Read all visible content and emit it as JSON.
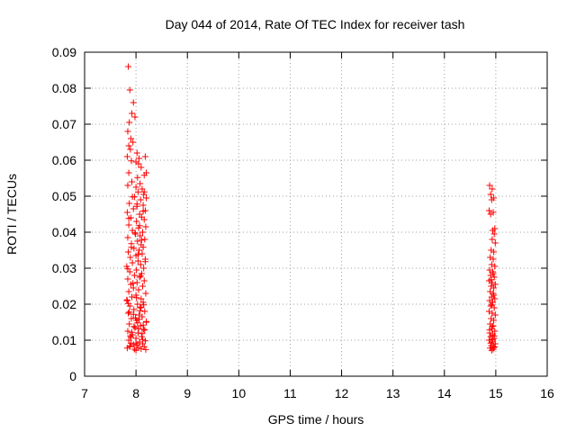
{
  "chart_data": {
    "type": "scatter",
    "title": "Day 044 of 2014, Rate Of TEC Index for receiver tash",
    "xlabel": "GPS time / hours",
    "ylabel": "ROTI / TECUs",
    "xlim": [
      7,
      16
    ],
    "ylim": [
      0,
      0.09
    ],
    "xticks": [
      7,
      8,
      9,
      10,
      11,
      12,
      13,
      14,
      15,
      16
    ],
    "yticks": [
      0,
      0.01,
      0.02,
      0.03,
      0.04,
      0.05,
      0.06,
      0.07,
      0.08,
      0.09
    ],
    "ytick_labels": [
      "0",
      "0.01",
      "0.02",
      "0.03",
      "0.04",
      "0.05",
      "0.06",
      "0.07",
      "0.08",
      "0.09"
    ],
    "grid": true,
    "marker": "plus",
    "series": [
      {
        "color": "#ff0000",
        "points": [
          [
            7.85,
            0.086
          ],
          [
            7.88,
            0.0795
          ],
          [
            7.95,
            0.076
          ],
          [
            7.92,
            0.073
          ],
          [
            7.98,
            0.072
          ],
          [
            7.87,
            0.0705
          ],
          [
            7.84,
            0.068
          ],
          [
            7.9,
            0.066
          ],
          [
            7.94,
            0.065
          ],
          [
            7.86,
            0.064
          ],
          [
            7.89,
            0.063
          ],
          [
            8.02,
            0.062
          ],
          [
            7.83,
            0.061
          ],
          [
            8.06,
            0.0605
          ],
          [
            7.91,
            0.0598
          ],
          [
            8.0,
            0.0595
          ],
          [
            8.18,
            0.061
          ],
          [
            8.05,
            0.059
          ],
          [
            8.1,
            0.058
          ],
          [
            8.2,
            0.0565
          ],
          [
            8.16,
            0.0558
          ],
          [
            7.86,
            0.0565
          ],
          [
            8.03,
            0.0552
          ],
          [
            7.92,
            0.054
          ],
          [
            8.08,
            0.0535
          ],
          [
            7.84,
            0.053
          ],
          [
            8.0,
            0.0525
          ],
          [
            8.12,
            0.052
          ],
          [
            8.04,
            0.0512
          ],
          [
            8.15,
            0.0505
          ],
          [
            7.97,
            0.0498
          ],
          [
            8.2,
            0.0495
          ],
          [
            8.09,
            0.049
          ],
          [
            7.87,
            0.048
          ],
          [
            8.14,
            0.0475
          ],
          [
            8.02,
            0.0472
          ],
          [
            7.95,
            0.0465
          ],
          [
            8.18,
            0.046
          ],
          [
            7.83,
            0.0455
          ],
          [
            8.07,
            0.045
          ],
          [
            8.11,
            0.0442
          ],
          [
            7.9,
            0.044
          ],
          [
            8.16,
            0.0435
          ],
          [
            8.01,
            0.043
          ],
          [
            7.86,
            0.042
          ],
          [
            8.19,
            0.0415
          ],
          [
            8.05,
            0.0412
          ],
          [
            7.93,
            0.0405
          ],
          [
            8.13,
            0.04
          ],
          [
            7.99,
            0.0395
          ],
          [
            8.08,
            0.039
          ],
          [
            7.84,
            0.0385
          ],
          [
            8.17,
            0.038
          ],
          [
            8.03,
            0.0375
          ],
          [
            7.91,
            0.0368
          ],
          [
            8.1,
            0.0365
          ],
          [
            8.14,
            0.0358
          ],
          [
            7.96,
            0.0355
          ],
          [
            8.06,
            0.035
          ],
          [
            7.85,
            0.0345
          ],
          [
            8.12,
            0.034
          ],
          [
            8.0,
            0.0335
          ],
          [
            7.89,
            0.033
          ],
          [
            8.18,
            0.0325
          ],
          [
            8.04,
            0.032
          ],
          [
            7.93,
            0.0315
          ],
          [
            8.09,
            0.031
          ],
          [
            7.82,
            0.0305
          ],
          [
            8.15,
            0.03
          ],
          [
            8.01,
            0.0295
          ],
          [
            7.88,
            0.029
          ],
          [
            8.11,
            0.0285
          ],
          [
            7.97,
            0.028
          ],
          [
            8.07,
            0.0275
          ],
          [
            7.84,
            0.027
          ],
          [
            8.16,
            0.0265
          ],
          [
            8.02,
            0.026
          ],
          [
            7.9,
            0.0255
          ],
          [
            8.13,
            0.025
          ],
          [
            7.95,
            0.0245
          ],
          [
            8.05,
            0.024
          ],
          [
            7.86,
            0.0235
          ],
          [
            8.19,
            0.023
          ],
          [
            8.0,
            0.0225
          ],
          [
            7.92,
            0.022
          ],
          [
            8.1,
            0.0215
          ],
          [
            7.83,
            0.021
          ],
          [
            8.14,
            0.0205
          ],
          [
            8.03,
            0.02
          ],
          [
            7.88,
            0.0195
          ],
          [
            8.08,
            0.019
          ],
          [
            7.96,
            0.0185
          ],
          [
            8.17,
            0.018
          ],
          [
            7.85,
            0.0175
          ],
          [
            8.06,
            0.017
          ],
          [
            8.12,
            0.0165
          ],
          [
            7.91,
            0.016
          ],
          [
            8.01,
            0.0155
          ],
          [
            8.2,
            0.015
          ],
          [
            7.87,
            0.0145
          ],
          [
            8.09,
            0.014
          ],
          [
            7.98,
            0.0135
          ],
          [
            8.15,
            0.013
          ],
          [
            7.84,
            0.0125
          ],
          [
            8.04,
            0.012
          ],
          [
            7.93,
            0.0115
          ],
          [
            8.11,
            0.011
          ],
          [
            8.0,
            0.0105
          ],
          [
            7.86,
            0.01
          ],
          [
            8.18,
            0.0098
          ],
          [
            8.07,
            0.0095
          ],
          [
            7.9,
            0.0092
          ],
          [
            8.13,
            0.009
          ],
          [
            7.95,
            0.0088
          ],
          [
            8.02,
            0.0086
          ],
          [
            7.88,
            0.0084
          ],
          [
            8.16,
            0.0082
          ],
          [
            8.05,
            0.008
          ],
          [
            7.83,
            0.0078
          ],
          [
            8.1,
            0.0076
          ],
          [
            7.97,
            0.0075
          ],
          [
            8.19,
            0.0074
          ],
          [
            8.0,
            0.0072
          ],
          [
            7.92,
            0.0122
          ],
          [
            8.14,
            0.0142
          ],
          [
            7.99,
            0.0162
          ],
          [
            8.08,
            0.0182
          ],
          [
            7.85,
            0.0202
          ],
          [
            8.17,
            0.0128
          ],
          [
            8.03,
            0.0148
          ],
          [
            7.9,
            0.0108
          ],
          [
            8.12,
            0.0118
          ],
          [
            7.96,
            0.0138
          ],
          [
            8.06,
            0.0158
          ],
          [
            7.87,
            0.0178
          ],
          [
            8.15,
            0.0198
          ],
          [
            8.01,
            0.0218
          ],
          [
            7.94,
            0.0258
          ],
          [
            8.09,
            0.0278
          ],
          [
            7.84,
            0.0298
          ],
          [
            8.18,
            0.0318
          ],
          [
            8.04,
            0.0338
          ],
          [
            7.91,
            0.0358
          ],
          [
            8.11,
            0.0378
          ],
          [
            7.98,
            0.0398
          ],
          [
            8.07,
            0.0418
          ],
          [
            7.86,
            0.0438
          ],
          [
            8.14,
            0.0458
          ],
          [
            8.02,
            0.0478
          ],
          [
            7.93,
            0.0498
          ],
          [
            8.16,
            0.0512
          ],
          [
            7.89,
            0.0112
          ],
          [
            8.05,
            0.0132
          ],
          [
            8.2,
            0.0152
          ],
          [
            7.95,
            0.0172
          ],
          [
            8.1,
            0.0192
          ],
          [
            7.82,
            0.0212
          ],
          [
            8.13,
            0.0102
          ],
          [
            8.0,
            0.0092
          ],
          [
            7.88,
            0.0082
          ],
          [
            14.88,
            0.053
          ],
          [
            14.93,
            0.052
          ],
          [
            14.9,
            0.0505
          ],
          [
            14.96,
            0.0495
          ],
          [
            14.92,
            0.049
          ],
          [
            14.87,
            0.046
          ],
          [
            14.95,
            0.0455
          ],
          [
            14.9,
            0.045
          ],
          [
            14.98,
            0.041
          ],
          [
            14.94,
            0.0405
          ],
          [
            14.97,
            0.0395
          ],
          [
            14.93,
            0.038
          ],
          [
            14.99,
            0.037
          ],
          [
            14.91,
            0.035
          ],
          [
            14.96,
            0.0345
          ],
          [
            14.89,
            0.033
          ],
          [
            14.95,
            0.0325
          ],
          [
            14.92,
            0.031
          ],
          [
            14.98,
            0.0305
          ],
          [
            14.88,
            0.0295
          ],
          [
            14.94,
            0.029
          ],
          [
            14.9,
            0.028
          ],
          [
            14.97,
            0.0275
          ],
          [
            14.87,
            0.0265
          ],
          [
            14.93,
            0.026
          ],
          [
            14.99,
            0.0255
          ],
          [
            14.91,
            0.025
          ],
          [
            14.96,
            0.0245
          ],
          [
            14.89,
            0.0235
          ],
          [
            14.95,
            0.023
          ],
          [
            14.92,
            0.022
          ],
          [
            14.98,
            0.0215
          ],
          [
            14.88,
            0.021
          ],
          [
            14.94,
            0.0205
          ],
          [
            14.9,
            0.0195
          ],
          [
            14.97,
            0.019
          ],
          [
            14.87,
            0.018
          ],
          [
            14.93,
            0.0175
          ],
          [
            14.99,
            0.017
          ],
          [
            14.91,
            0.016
          ],
          [
            14.96,
            0.0155
          ],
          [
            14.89,
            0.0145
          ],
          [
            14.95,
            0.014
          ],
          [
            14.92,
            0.0132
          ],
          [
            14.98,
            0.0125
          ],
          [
            14.88,
            0.012
          ],
          [
            14.94,
            0.0115
          ],
          [
            14.9,
            0.011
          ],
          [
            14.97,
            0.0105
          ],
          [
            14.87,
            0.01
          ],
          [
            14.93,
            0.0095
          ],
          [
            14.99,
            0.009
          ],
          [
            14.91,
            0.0085
          ],
          [
            14.96,
            0.008
          ],
          [
            14.89,
            0.0078
          ],
          [
            14.95,
            0.0075
          ],
          [
            14.92,
            0.0072
          ],
          [
            14.98,
            0.0082
          ],
          [
            14.9,
            0.0092
          ],
          [
            14.94,
            0.0102
          ],
          [
            14.97,
            0.0112
          ],
          [
            14.88,
            0.0128
          ],
          [
            14.93,
            0.0138
          ],
          [
            14.96,
            0.0225
          ],
          [
            14.91,
            0.0268
          ],
          [
            14.95,
            0.0285
          ],
          [
            14.92,
            0.0198
          ]
        ]
      }
    ]
  }
}
